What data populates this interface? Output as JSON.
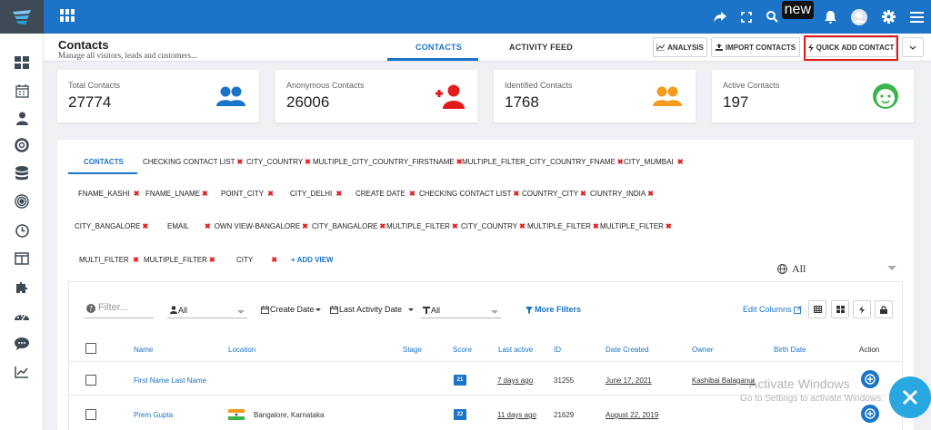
{
  "topbar": {
    "badge_new": "new"
  },
  "header": {
    "title": "Contacts",
    "subtitle": "Manage all visitors, leads and customers...",
    "tabs": [
      {
        "label": "CONTACTS"
      },
      {
        "label": "ACTIVITY FEED"
      }
    ],
    "buttons": {
      "analysis": "ANALYSIS",
      "import": "IMPORT CONTACTS",
      "quick_add": "QUICK ADD CONTACT"
    }
  },
  "stats": [
    {
      "title": "Total Contacts",
      "value": "27774"
    },
    {
      "title": "Anonymous Contacts",
      "value": "26006"
    },
    {
      "title": "Identified Contacts",
      "value": "1768"
    },
    {
      "title": "Active Contacts",
      "value": "197"
    }
  ],
  "views": {
    "items": [
      "CONTACTS",
      "CHECKING CONTACT LIST",
      "CITY_COUNTRY",
      "MULTIPLE_CITY_COUNTRY_FIRSTNAME",
      "MULTIPLE_FILTER_CITY_COUNTRY_FNAME",
      "CITY_MUMBAI",
      "FNAME_KASHI",
      "FNAME_LNAME",
      "POINT_CITY",
      "CITY_DELHI",
      "CREATE DATE",
      "CHECKING CONTACT LIST",
      "COUNTRY_CITY",
      "CIUNTRY_INDIA",
      "CITY_BANGALORE",
      "EMAIL",
      "OWN VIEW-BANGALORE",
      "CITY_BANGALORE",
      "MULTIPLE_FILTER",
      "CITY_COUNTRY",
      "MULTIPLE_FILTER",
      "MULTIPLE_FILTER",
      "MULTI_FILTER",
      "MULTIPLE_FILTER",
      "CITY"
    ],
    "add_view": "+ ADD VIEW",
    "scope": "All"
  },
  "filters": {
    "placeholder": "Filter...",
    "owner": "All",
    "create_date": "Create Date",
    "last_activity": "Last Activity Date",
    "type": "All",
    "more": "More Filters",
    "edit_columns": "Edit Columns"
  },
  "table": {
    "columns": [
      "Name",
      "Location",
      "Stage",
      "Score",
      "Last active",
      "ID",
      "Date Created",
      "Owner",
      "Birth Date",
      "Action"
    ],
    "rows": [
      {
        "name": "First Name Last Name",
        "location": "",
        "score": "21",
        "last_active": "7 days ago",
        "id": "31255",
        "date_created": "June 17, 2021",
        "owner": "Kashibai Balaganur",
        "birth": ""
      },
      {
        "name": "Prem Gupta",
        "location": "Bangalore, Karnataka",
        "score": "22",
        "last_active": "11 days ago",
        "id": "21629",
        "date_created": "August 22, 2019",
        "owner": "",
        "birth": ""
      }
    ]
  },
  "watermark": {
    "line1": "Activate Windows",
    "line2": "Go to Settings to activate Windows."
  }
}
